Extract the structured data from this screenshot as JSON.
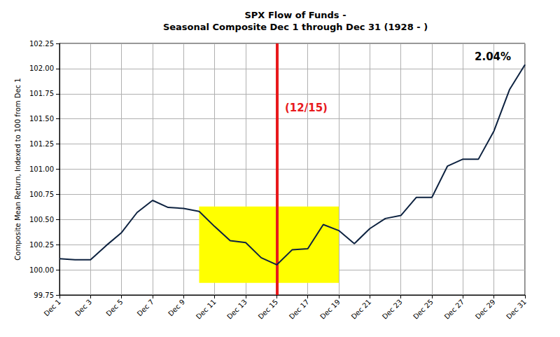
{
  "chart_data": {
    "type": "line",
    "title": "SPX Flow of Funds -\nSeasonal Composite Dec 1 through Dec 31 (1928 - )",
    "y_label": "Composite Mean Return, Indexed to 100 from Dec 1",
    "x": [
      1,
      2,
      3,
      4,
      5,
      6,
      7,
      8,
      9,
      10,
      11,
      12,
      13,
      14,
      15,
      16,
      17,
      18,
      19,
      20,
      21,
      22,
      23,
      24,
      25,
      26,
      27,
      28,
      29,
      30,
      31
    ],
    "values": [
      100.11,
      100.1,
      100.1,
      100.24,
      100.37,
      100.57,
      100.69,
      100.62,
      100.61,
      100.58,
      100.43,
      100.29,
      100.27,
      100.12,
      100.05,
      100.2,
      100.21,
      100.45,
      100.39,
      100.26,
      100.41,
      100.51,
      100.54,
      100.72,
      100.72,
      101.03,
      101.1,
      101.1,
      101.38,
      101.79,
      102.04
    ],
    "color": "#0d2240",
    "xlim": [
      1,
      31
    ],
    "xticks": [
      {
        "value": 1,
        "label": "Dec 1"
      },
      {
        "value": 3,
        "label": "Dec 3"
      },
      {
        "value": 5,
        "label": "Dec 5"
      },
      {
        "value": 7,
        "label": "Dec 7"
      },
      {
        "value": 9,
        "label": "Dec 9"
      },
      {
        "value": 11,
        "label": "Dec 11"
      },
      {
        "value": 13,
        "label": "Dec 13"
      },
      {
        "value": 15,
        "label": "Dec 15"
      },
      {
        "value": 17,
        "label": "Dec 17"
      },
      {
        "value": 19,
        "label": "Dec 19"
      },
      {
        "value": 21,
        "label": "Dec 21"
      },
      {
        "value": 23,
        "label": "Dec 23"
      },
      {
        "value": 25,
        "label": "Dec 25"
      },
      {
        "value": 27,
        "label": "Dec 27"
      },
      {
        "value": 29,
        "label": "Dec 29"
      },
      {
        "value": 31,
        "label": "Dec 31"
      }
    ],
    "ylim": [
      99.75,
      102.25
    ],
    "yticks": [
      99.75,
      {
        "value": 100,
        "label": "100.00"
      },
      100.25,
      {
        "value": 100.5,
        "label": "100.50"
      },
      100.75,
      {
        "value": 101,
        "label": "101.00"
      },
      101.25,
      {
        "value": 101.5,
        "label": "101.50"
      },
      101.75,
      {
        "value": 102,
        "label": "102.00"
      },
      102.25
    ],
    "grid": true,
    "vline": {
      "x": 15,
      "color": "#e8191c",
      "label": "(12/15)"
    },
    "highlight": {
      "x": [
        10,
        19
      ],
      "y": [
        99.87,
        100.63
      ],
      "color": "#ffff00"
    },
    "annotation": "2.04%"
  }
}
